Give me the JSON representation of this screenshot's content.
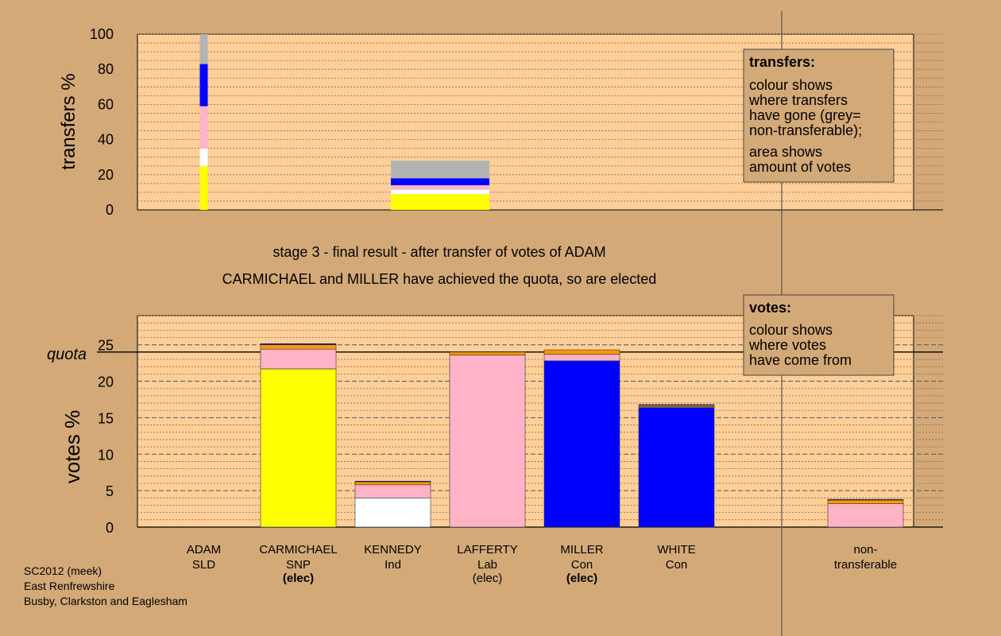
{
  "page": {
    "caption_line1": "stage 3 - final result - after transfer of votes of ADAM",
    "caption_line2": "CARMICHAEL and MILLER have achieved the quota, so are elected",
    "footer": [
      "SC2012 (meek)",
      "East Renfrewshire",
      "Busby, Clarkston and Eaglesham"
    ]
  },
  "colors": {
    "background": "#d4a978",
    "plot_background": "#ffcf99",
    "SNP": "#ffff00",
    "Ind": "#ffffff",
    "Lab": "#ffb3c6",
    "Con": "#0000ff",
    "SLD": "#ff9900",
    "nontransferable": "#b3b3b3",
    "quota_line": "#000000"
  },
  "legends": {
    "transfers": {
      "title": "transfers:",
      "lines1": [
        "colour shows",
        "where transfers",
        "have gone (grey=",
        "non-transferable);"
      ],
      "lines2": [
        "area shows",
        "amount of votes"
      ]
    },
    "votes": {
      "title": "votes:",
      "lines": [
        "colour shows",
        "where votes",
        "have come from"
      ]
    }
  },
  "chart_data": [
    {
      "type": "bar",
      "name": "transfers",
      "ylabel": "transfers %",
      "ylim": [
        0,
        100
      ],
      "yticks": [
        0,
        20,
        40,
        60,
        80,
        100
      ],
      "stacked": true,
      "bars": [
        {
          "slot": 0,
          "width": "thin",
          "segments": [
            {
              "party": "SNP",
              "value": 25
            },
            {
              "party": "Ind",
              "value": 10
            },
            {
              "party": "Lab",
              "value": 24
            },
            {
              "party": "Con",
              "value": 24
            },
            {
              "party": "nontransferable",
              "value": 17
            }
          ]
        },
        {
          "slot": 2.5,
          "width": "wide",
          "segments": [
            {
              "party": "SNP",
              "value": 9
            },
            {
              "party": "Ind",
              "value": 2.5
            },
            {
              "party": "Lab",
              "value": 2.5
            },
            {
              "party": "Con",
              "value": 4
            },
            {
              "party": "nontransferable",
              "value": 10
            }
          ]
        }
      ]
    },
    {
      "type": "bar",
      "name": "votes",
      "ylabel": "votes %",
      "ylim": [
        0,
        29
      ],
      "yticks": [
        0,
        5,
        10,
        15,
        20,
        25
      ],
      "quota": 24,
      "quota_label": "quota",
      "stacked": true,
      "categories": [
        {
          "name": "ADAM",
          "party": "SLD",
          "status": "",
          "status_bold": false,
          "segments": []
        },
        {
          "name": "CARMICHAEL",
          "party": "SNP",
          "status": "(elec)",
          "status_bold": true,
          "segments": [
            {
              "party": "SNP",
              "value": 21.7
            },
            {
              "party": "Lab",
              "value": 2.7
            },
            {
              "party": "SLD",
              "value": 0.6
            },
            {
              "party": "Con",
              "value": 0.15
            }
          ]
        },
        {
          "name": "KENNEDY",
          "party": "Ind",
          "status": "",
          "status_bold": false,
          "segments": [
            {
              "party": "Ind",
              "value": 4.0
            },
            {
              "party": "Lab",
              "value": 1.8
            },
            {
              "party": "SLD",
              "value": 0.4
            },
            {
              "party": "Con",
              "value": 0.1
            }
          ]
        },
        {
          "name": "LAFFERTY",
          "party": "Lab",
          "status": "(elec)",
          "status_bold": false,
          "segments": [
            {
              "party": "Lab",
              "value": 23.6
            },
            {
              "party": "SLD",
              "value": 0.4
            }
          ]
        },
        {
          "name": "MILLER",
          "party": "Con",
          "status": "(elec)",
          "status_bold": true,
          "segments": [
            {
              "party": "Con",
              "value": 22.8
            },
            {
              "party": "Lab",
              "value": 0.9
            },
            {
              "party": "SLD",
              "value": 0.6
            }
          ]
        },
        {
          "name": "WHITE",
          "party": "Con",
          "status": "",
          "status_bold": false,
          "segments": [
            {
              "party": "Con",
              "value": 16.4
            },
            {
              "party": "Lab",
              "value": 0.1
            },
            {
              "party": "SLD",
              "value": 0.2
            },
            {
              "party": "Con",
              "value": 0.1
            }
          ]
        },
        {
          "name": "",
          "party": "",
          "status": "",
          "status_bold": false,
          "segments": []
        },
        {
          "name": "non-",
          "party": "transferable",
          "status": "",
          "status_bold": false,
          "segments": [
            {
              "party": "Lab",
              "value": 3.2
            },
            {
              "party": "SLD",
              "value": 0.5
            },
            {
              "party": "Con",
              "value": 0.1
            }
          ]
        }
      ]
    }
  ]
}
